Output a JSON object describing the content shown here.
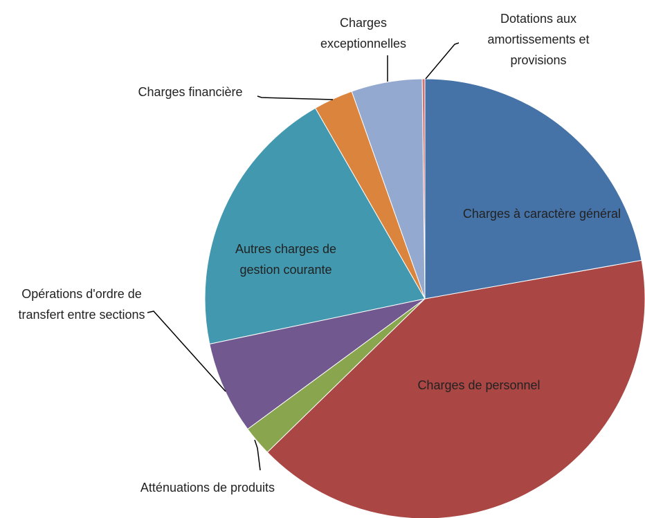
{
  "chart_data": {
    "type": "pie",
    "categories": [
      "Charges à caractère général",
      "Charges de personnel",
      "Atténuations de produits",
      "Opérations d'ordre de transfert entre sections",
      "Autres charges de gestion courante",
      "Charges financière",
      "Charges exceptionnelles",
      "Dotations aux amortissements et provisions"
    ],
    "values": [
      22.2,
      40.5,
      2.2,
      6.8,
      20.0,
      2.9,
      5.2,
      0.2
    ],
    "colors": [
      "#4572a7",
      "#aa4643",
      "#89a54e",
      "#71588f",
      "#4198af",
      "#db843d",
      "#93a9cf",
      "#d4706e"
    ]
  }
}
